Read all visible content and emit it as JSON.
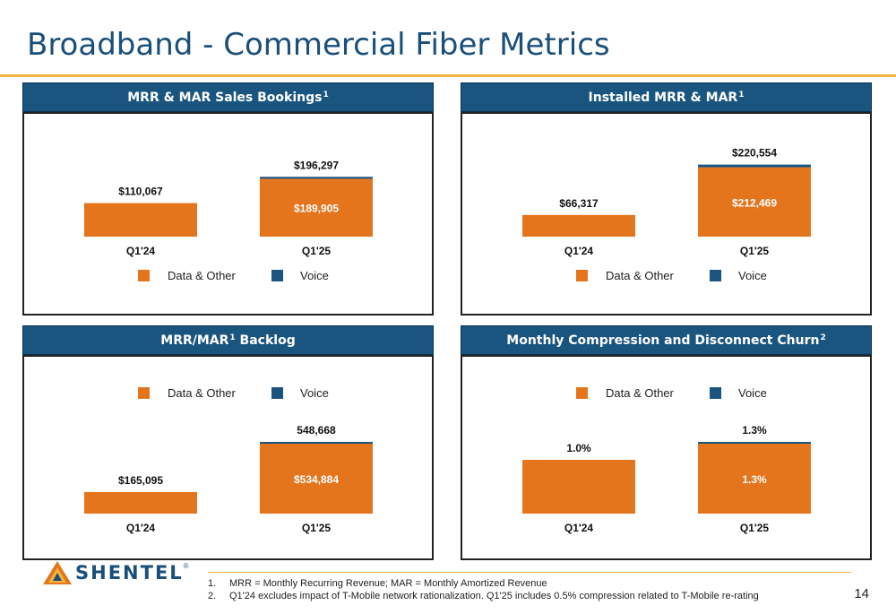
{
  "title": "Broadband - Commercial Fiber Metrics",
  "colors": {
    "data_other": "#e5751d",
    "voice": "#1a5580"
  },
  "legend": {
    "data_other": "Data & Other",
    "voice": "Voice"
  },
  "panels": [
    {
      "header": "MRR & MAR Sales Bookings",
      "sup": "1"
    },
    {
      "header": "Installed MRR & MAR",
      "sup": "1"
    },
    {
      "header_a": "MRR/MAR",
      "sup": "1",
      "header_b": " Backlog"
    },
    {
      "header": "Monthly Compression and Disconnect Churn",
      "sup": "2"
    }
  ],
  "chart_data": [
    {
      "type": "bar",
      "stacked": true,
      "legend_position": "bottom",
      "categories": [
        "Q1'24",
        "Q1'25"
      ],
      "series": [
        {
          "name": "Data & Other",
          "values": [
            110067,
            189905
          ],
          "labels": [
            "",
            "$189,905"
          ]
        },
        {
          "name": "Voice",
          "values": [
            0,
            6392
          ]
        }
      ],
      "total_labels": [
        "$110,067",
        "$196,297"
      ],
      "ylim": [
        0,
        300000
      ]
    },
    {
      "type": "bar",
      "stacked": true,
      "legend_position": "bottom",
      "categories": [
        "Q1'24",
        "Q1'25"
      ],
      "series": [
        {
          "name": "Data & Other",
          "values": [
            66317,
            212469
          ],
          "labels": [
            "",
            "$212,469"
          ]
        },
        {
          "name": "Voice",
          "values": [
            0,
            8085
          ]
        }
      ],
      "total_labels": [
        "$66,317",
        "$220,554"
      ],
      "ylim": [
        0,
        280000
      ]
    },
    {
      "type": "bar",
      "stacked": true,
      "legend_position": "top",
      "categories": [
        "Q1'24",
        "Q1'25"
      ],
      "series": [
        {
          "name": "Data & Other",
          "values": [
            165095,
            534884
          ],
          "labels": [
            "",
            "$534,884"
          ]
        },
        {
          "name": "Voice",
          "values": [
            0,
            13784
          ]
        }
      ],
      "total_labels": [
        "$165,095",
        "548,668"
      ],
      "ylim": [
        0,
        720000
      ]
    },
    {
      "type": "bar",
      "stacked": true,
      "legend_position": "top",
      "categories": [
        "Q1'24",
        "Q1'25"
      ],
      "series": [
        {
          "name": "Data & Other",
          "values": [
            1.0,
            1.3
          ],
          "labels": [
            "",
            "1.3%"
          ]
        },
        {
          "name": "Voice",
          "values": [
            0,
            0.02
          ]
        }
      ],
      "total_labels": [
        "1.0%",
        "1.3%"
      ],
      "ylim": [
        0,
        1.75
      ]
    }
  ],
  "logo": {
    "text": "SHENTEL",
    "reg": "®"
  },
  "footnotes": [
    {
      "num": "1.",
      "text": "MRR = Monthly Recurring Revenue; MAR = Monthly Amortized Revenue"
    },
    {
      "num": "2.",
      "text": "Q1'24 excludes impact of T-Mobile network rationalization. Q1'25 includes 0.5% compression related to T-Mobile re-rating"
    }
  ],
  "page_number": "14"
}
